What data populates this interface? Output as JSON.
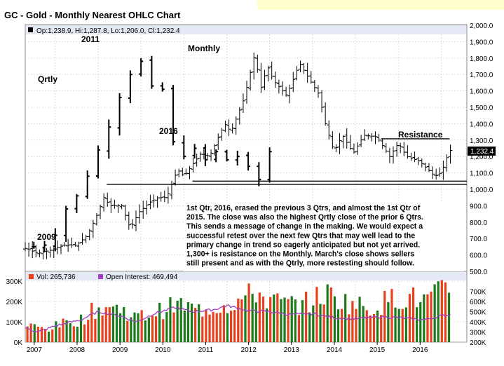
{
  "title": "GC - Gold - Monthly Nearest OHLC Chart",
  "price_panel": {
    "ohlc_readout": "Op:1,238.9, Hi:1,287.8, Lo:1,206.0, Cl:1,232.4",
    "last_price_label": "1,232.4",
    "label_qtrly": "Qrtly",
    "label_monthly": "Monthly",
    "label_2011": "2011",
    "label_2016": "2016",
    "label_2009": "2009",
    "label_resistance": "Resistance",
    "commentary": [
      "1st Qtr, 2016, erased the previous 3 Qtrs, and almost the 1st Qtr of",
      "2015.  The close was also the highest Qrtly close of the prior 6 Qtrs.",
      "This sends a message of change in the making.  We would expect a",
      "successful retest over the next few Qtrs that may well lead to the",
      "primary change in trend so eagerly anticipated but not yet arrived.",
      "1,300+ is resistance on the Monthly.  March's close shows sellers",
      "still present and as with the Qtrly, more restesting should follow."
    ]
  },
  "volume_panel": {
    "vol_label": "Vol: 265,736",
    "oi_label": "Open Interest: 469,494"
  },
  "colors": {
    "bar": "#000000",
    "vol_up": "#1a7a1a",
    "vol_down": "#e8401c",
    "oi_line": "#a040c0",
    "grid": "#c8c8c8",
    "header_bg": "#e4e8f4",
    "top_box": "#ffffcc"
  },
  "chart_data": [
    {
      "type": "ohlc",
      "title": "GC - Gold - Monthly Nearest OHLC Chart",
      "y_ticks": [
        "2,000.0",
        "1,900.0",
        "1,800.0",
        "1,700.0",
        "1,600.0",
        "1,500.0",
        "1,400.0",
        "1,300.0",
        "1,200.0",
        "1,100.0",
        "1,000.0",
        "900.0",
        "800.0",
        "700.0",
        "600.0",
        "500.0"
      ],
      "ylim": [
        500,
        2000
      ],
      "x_ticks": [
        "2007",
        "2008",
        "2009",
        "2010",
        "2011",
        "2012",
        "2013",
        "2014",
        "2015",
        "2016"
      ],
      "xlim": [
        2006.3,
        2016.6
      ],
      "monthly_anchors": [
        [
          2006.3,
          640
        ],
        [
          2006.6,
          610
        ],
        [
          2006.9,
          630
        ],
        [
          2007.2,
          660
        ],
        [
          2007.5,
          660
        ],
        [
          2007.75,
          720
        ],
        [
          2007.95,
          830
        ],
        [
          2008.15,
          960
        ],
        [
          2008.25,
          900
        ],
        [
          2008.55,
          900
        ],
        [
          2008.75,
          760
        ],
        [
          2008.95,
          860
        ],
        [
          2009.2,
          920
        ],
        [
          2009.4,
          950
        ],
        [
          2009.6,
          950
        ],
        [
          2009.85,
          1120
        ],
        [
          2010.0,
          1080
        ],
        [
          2010.4,
          1220
        ],
        [
          2010.6,
          1200
        ],
        [
          2010.95,
          1400
        ],
        [
          2011.1,
          1350
        ],
        [
          2011.4,
          1550
        ],
        [
          2011.65,
          1820
        ],
        [
          2011.8,
          1620
        ],
        [
          2011.95,
          1750
        ],
        [
          2012.1,
          1660
        ],
        [
          2012.4,
          1570
        ],
        [
          2012.7,
          1770
        ],
        [
          2012.95,
          1660
        ],
        [
          2013.15,
          1580
        ],
        [
          2013.3,
          1400
        ],
        [
          2013.5,
          1230
        ],
        [
          2013.7,
          1330
        ],
        [
          2013.95,
          1220
        ],
        [
          2014.2,
          1330
        ],
        [
          2014.5,
          1320
        ],
        [
          2014.8,
          1200
        ],
        [
          2015.0,
          1280
        ],
        [
          2015.2,
          1200
        ],
        [
          2015.5,
          1170
        ],
        [
          2015.85,
          1080
        ],
        [
          2016.0,
          1100
        ],
        [
          2016.2,
          1240
        ],
        [
          2016.25,
          1230
        ]
      ],
      "quarterly_anchors": [
        [
          2006.5,
          650
        ],
        [
          2006.75,
          660
        ],
        [
          2007.0,
          720
        ],
        [
          2007.25,
          880
        ],
        [
          2007.5,
          960
        ],
        [
          2007.75,
          1080
        ],
        [
          2008.0,
          1240
        ],
        [
          2008.25,
          1380
        ],
        [
          2008.5,
          1560
        ],
        [
          2008.75,
          1700
        ],
        [
          2009.0,
          1780
        ],
        [
          2009.25,
          1630
        ],
        [
          2009.5,
          1610
        ],
        [
          2009.75,
          1290
        ],
        [
          2010.0,
          1200
        ],
        [
          2010.25,
          1250
        ],
        [
          2010.5,
          1180
        ],
        [
          2010.75,
          1230
        ],
        [
          2011.0,
          1180
        ],
        [
          2011.25,
          1200
        ],
        [
          2011.5,
          1140
        ],
        [
          2011.75,
          1060
        ],
        [
          2012.0,
          1230
        ]
      ],
      "horizontal_lines": [
        {
          "from": 2008.2,
          "to": 2016.6,
          "value": 1030
        },
        {
          "from": 2010.2,
          "to": 2016.6,
          "value": 1050
        },
        {
          "from": 2014.6,
          "to": 2016.2,
          "value": 1308
        }
      ]
    },
    {
      "type": "bar",
      "series": [
        {
          "name": "Vol: 265,736"
        },
        {
          "name": "Open Interest: 469,494"
        }
      ],
      "left_ticks": [
        "300K",
        "200K",
        "100K",
        "0K"
      ],
      "ylim_volume": [
        0,
        300000
      ],
      "right_ticks": [
        "700K",
        "600K",
        "500K",
        "400K",
        "300K",
        "200K"
      ],
      "ylim_open_interest": [
        200000,
        800000
      ],
      "volume_anchors": [
        [
          2006.3,
          90000
        ],
        [
          2006.8,
          70000
        ],
        [
          2007.2,
          100000
        ],
        [
          2007.6,
          120000
        ],
        [
          2007.9,
          170000
        ],
        [
          2008.2,
          190000
        ],
        [
          2008.6,
          170000
        ],
        [
          2008.9,
          130000
        ],
        [
          2009.2,
          150000
        ],
        [
          2009.6,
          180000
        ],
        [
          2009.9,
          200000
        ],
        [
          2010.3,
          170000
        ],
        [
          2010.7,
          190000
        ],
        [
          2011.0,
          200000
        ],
        [
          2011.4,
          230000
        ],
        [
          2011.7,
          270000
        ],
        [
          2012.0,
          220000
        ],
        [
          2012.5,
          200000
        ],
        [
          2012.9,
          210000
        ],
        [
          2013.3,
          260000
        ],
        [
          2013.7,
          220000
        ],
        [
          2014.0,
          200000
        ],
        [
          2014.4,
          180000
        ],
        [
          2014.8,
          230000
        ],
        [
          2015.2,
          240000
        ],
        [
          2015.6,
          220000
        ],
        [
          2016.0,
          260000
        ],
        [
          2016.25,
          300000
        ]
      ],
      "open_interest_anchors": [
        [
          2006.3,
          340000
        ],
        [
          2006.6,
          300000
        ],
        [
          2007.0,
          360000
        ],
        [
          2007.6,
          420000
        ],
        [
          2008.0,
          500000
        ],
        [
          2008.5,
          460000
        ],
        [
          2008.9,
          400000
        ],
        [
          2009.3,
          480000
        ],
        [
          2009.8,
          540000
        ],
        [
          2010.2,
          500000
        ],
        [
          2010.7,
          520000
        ],
        [
          2011.0,
          560000
        ],
        [
          2011.5,
          510000
        ],
        [
          2012.0,
          500000
        ],
        [
          2012.5,
          470000
        ],
        [
          2013.0,
          480000
        ],
        [
          2013.5,
          440000
        ],
        [
          2014.0,
          430000
        ],
        [
          2014.6,
          450000
        ],
        [
          2015.0,
          440000
        ],
        [
          2015.6,
          420000
        ],
        [
          2016.0,
          460000
        ],
        [
          2016.25,
          470000
        ]
      ]
    }
  ]
}
